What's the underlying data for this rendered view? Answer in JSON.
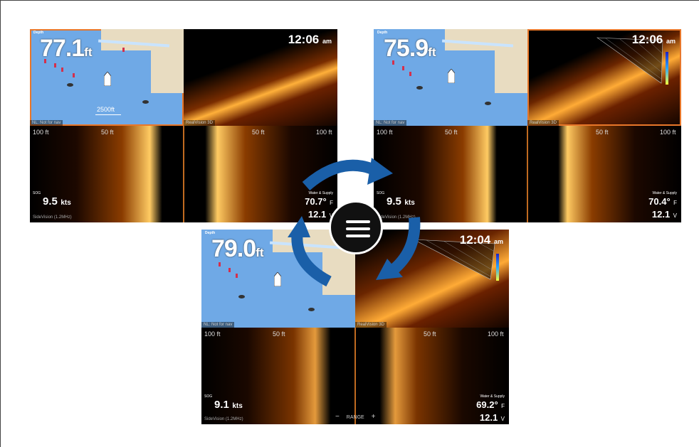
{
  "screens": [
    {
      "id": "top-left",
      "map": {
        "depth_label": "Depth",
        "depth_value": "77.1",
        "depth_unit": "ft",
        "scale": "2500ft",
        "status": "NL: Not for nav"
      },
      "sonar3d": {
        "time": "12:06",
        "ampm": "am",
        "status": "RealVision 3D"
      },
      "sidevision": {
        "ruler": [
          "100 ft",
          "50 ft",
          "50 ft",
          "100 ft"
        ],
        "sog_label": "SOG",
        "sog_value": "9.5",
        "sog_unit": "kts",
        "water_label": "Water & Supply",
        "temp": "70.7°",
        "temp_unit": "F",
        "volt": "12.1",
        "volt_unit": "V",
        "source": "SideVision (1.2MHz)"
      }
    },
    {
      "id": "top-right",
      "map": {
        "depth_label": "Depth",
        "depth_value": "75.9",
        "depth_unit": "ft",
        "status": "NL: Not for nav"
      },
      "sonar3d": {
        "time": "12:06",
        "ampm": "am",
        "status": "RealVision 3D"
      },
      "sidevision": {
        "ruler": [
          "100 ft",
          "50 ft",
          "50 ft",
          "100 ft"
        ],
        "sog_label": "SOG",
        "sog_value": "9.5",
        "sog_unit": "kts",
        "water_label": "Water & Supply",
        "temp": "70.4°",
        "temp_unit": "F",
        "volt": "12.1",
        "volt_unit": "V",
        "source": "SideVision (1.2MHz)"
      }
    },
    {
      "id": "bottom",
      "map": {
        "depth_label": "Depth",
        "depth_value": "79.0",
        "depth_unit": "ft",
        "status": "NL: Not for nav"
      },
      "sonar3d": {
        "time": "12:04",
        "ampm": "am",
        "status": "RealVision 3D"
      },
      "sidevision": {
        "ruler": [
          "100 ft",
          "50 ft",
          "50 ft",
          "100 ft"
        ],
        "sog_label": "SOG",
        "sog_value": "9.1",
        "sog_unit": "kts",
        "water_label": "Water & Supply",
        "temp": "69.2°",
        "temp_unit": "F",
        "volt": "12.1",
        "volt_unit": "V",
        "source": "SideVision (1.2MHz)",
        "range_minus": "−",
        "range_label": "RANGE",
        "range_plus": "+"
      }
    }
  ],
  "menu_button": {
    "icon": "hamburger-menu-icon"
  },
  "colors": {
    "selection": "#e8772a",
    "arrow": "#1a5fa8",
    "water": "#6fa9e6",
    "land": "#e8dcc1"
  }
}
